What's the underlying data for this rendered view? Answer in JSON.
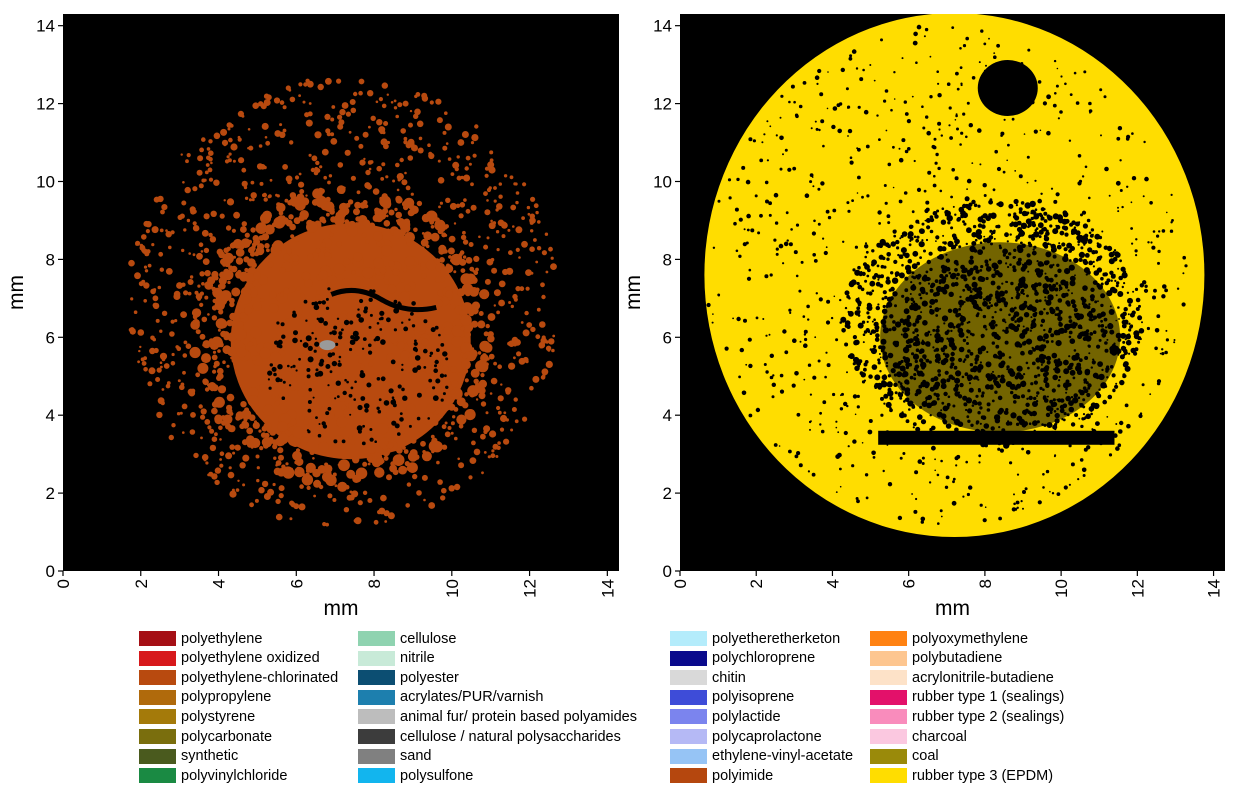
{
  "chart_data": [
    {
      "type": "heatmap",
      "xlabel": "mm",
      "ylabel": "mm",
      "xlim": [
        0,
        14.3
      ],
      "ylim": [
        0,
        14.3
      ],
      "xticks": [
        0,
        2,
        4,
        6,
        8,
        10,
        12,
        14
      ],
      "yticks": [
        0,
        2,
        4,
        6,
        8,
        10,
        12,
        14
      ],
      "background_color": "#000000",
      "dominant_material": "polyethylene-chlorinated",
      "dominant_color": "#b84a0f"
    },
    {
      "type": "heatmap",
      "xlabel": "mm",
      "ylabel": "mm",
      "xlim": [
        0,
        14.3
      ],
      "ylim": [
        0,
        14.3
      ],
      "xticks": [
        0,
        2,
        4,
        6,
        8,
        10,
        12,
        14
      ],
      "yticks": [
        0,
        2,
        4,
        6,
        8,
        10,
        12,
        14
      ],
      "background_color": "#000000",
      "dominant_material": "rubber type 3 (EPDM)",
      "dominant_color": "#ffdd00"
    }
  ],
  "legend": [
    {
      "label": "polyethylene",
      "color": "#a50f15"
    },
    {
      "label": "polyethylene oxidized",
      "color": "#d7191c"
    },
    {
      "label": "polyethylene-chlorinated",
      "color": "#b84a0f"
    },
    {
      "label": "polypropylene",
      "color": "#b06a0c"
    },
    {
      "label": "polystyrene",
      "color": "#a47a0a"
    },
    {
      "label": "polycarbonate",
      "color": "#7a6e0d"
    },
    {
      "label": "synthetic",
      "color": "#4a5a1e"
    },
    {
      "label": "polyvinylchloride",
      "color": "#1a8a43"
    },
    {
      "label": "cellulose",
      "color": "#8fd3b0"
    },
    {
      "label": "nitrile",
      "color": "#c8ead8"
    },
    {
      "label": "polyester",
      "color": "#0c4e72"
    },
    {
      "label": "acrylates/PUR/varnish",
      "color": "#1d7fae"
    },
    {
      "label": "animal fur/ protein based polyamides",
      "color": "#bdbdbd"
    },
    {
      "label": "cellulose / natural polysaccharides",
      "color": "#3c3c3c"
    },
    {
      "label": "sand",
      "color": "#808080"
    },
    {
      "label": "polysulfone",
      "color": "#12b5ee"
    },
    {
      "label": "polyetheretherketon",
      "color": "#b4ecfb"
    },
    {
      "label": "polychloroprene",
      "color": "#0a0a8c"
    },
    {
      "label": "chitin",
      "color": "#d9d9d9"
    },
    {
      "label": "polyisoprene",
      "color": "#3e4cd8"
    },
    {
      "label": "polylactide",
      "color": "#7b84ee"
    },
    {
      "label": "polycaprolactone",
      "color": "#b5b9f5"
    },
    {
      "label": "ethylene-vinyl-acetate",
      "color": "#96c4f5"
    },
    {
      "label": "polyimide",
      "color": "#b5470e"
    },
    {
      "label": "polyoxymethylene",
      "color": "#ff8212"
    },
    {
      "label": "polybutadiene",
      "color": "#fdc690"
    },
    {
      "label": "acrylonitrile-butadiene",
      "color": "#fde2c8"
    },
    {
      "label": "rubber type 1 (sealings)",
      "color": "#e3116a"
    },
    {
      "label": "rubber type 2 (sealings)",
      "color": "#f98cbc"
    },
    {
      "label": "charcoal",
      "color": "#fbc8e0"
    },
    {
      "label": "coal",
      "color": "#9a8a0a"
    },
    {
      "label": "rubber type 3 (EPDM)",
      "color": "#ffdd00"
    }
  ]
}
